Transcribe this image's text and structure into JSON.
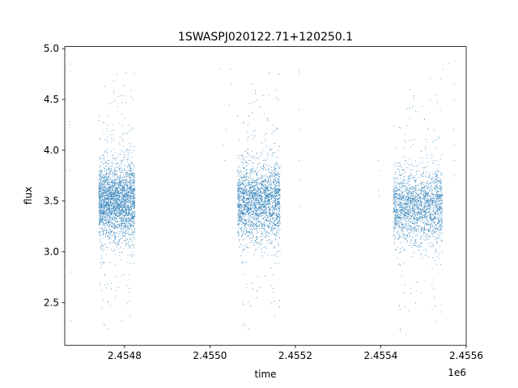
{
  "chart_data": {
    "type": "scatter",
    "title": "1SWASPJ020122.71+120250.1",
    "xlabel": "time",
    "ylabel": "flux",
    "x_offset_label": "1e6",
    "xlim": [
      2454660,
      2455600
    ],
    "ylim": [
      2.08,
      5.02
    ],
    "x_ticks": [
      2454800,
      2455000,
      2455200,
      2455400,
      2455600
    ],
    "x_tick_labels": [
      "2.4548",
      "2.4550",
      "2.4552",
      "2.4554",
      "2.4556"
    ],
    "y_ticks": [
      2.5,
      3.0,
      3.5,
      4.0,
      4.5,
      5.0
    ],
    "y_tick_labels": [
      "2.5",
      "3.0",
      "3.5",
      "4.0",
      "4.5",
      "5.0"
    ],
    "grid": false,
    "point_color": "#1f77b4",
    "observing_seasons": [
      {
        "start": 2454740,
        "end": 2454825,
        "median_flux": 3.5,
        "core_spread": 0.18,
        "points": 3000
      },
      {
        "start": 2455065,
        "end": 2455165,
        "median_flux": 3.5,
        "core_spread": 0.18,
        "points": 3200
      },
      {
        "start": 2455430,
        "end": 2455545,
        "median_flux": 3.45,
        "core_spread": 0.17,
        "points": 2600
      }
    ],
    "sparse_points": [
      {
        "x": 2454672,
        "y": 4.28
      },
      {
        "x": 2454672,
        "y": 4.25
      },
      {
        "x": 2454673,
        "y": 4.85
      },
      {
        "x": 2454673,
        "y": 4.78
      },
      {
        "x": 2454672,
        "y": 3.8
      },
      {
        "x": 2454674,
        "y": 2.8
      },
      {
        "x": 2454675,
        "y": 2.32
      },
      {
        "x": 2455048,
        "y": 4.8
      },
      {
        "x": 2455050,
        "y": 4.65
      },
      {
        "x": 2455045,
        "y": 4.45
      },
      {
        "x": 2455038,
        "y": 4.2
      },
      {
        "x": 2455035,
        "y": 3.9
      },
      {
        "x": 2455025,
        "y": 4.8
      },
      {
        "x": 2455030,
        "y": 4.05
      },
      {
        "x": 2455208,
        "y": 4.78
      },
      {
        "x": 2455209,
        "y": 4.75
      },
      {
        "x": 2455208,
        "y": 4.4
      },
      {
        "x": 2455210,
        "y": 4.2
      },
      {
        "x": 2455208,
        "y": 3.9
      },
      {
        "x": 2455209,
        "y": 3.7
      },
      {
        "x": 2455210,
        "y": 3.45
      },
      {
        "x": 2455395,
        "y": 3.9
      },
      {
        "x": 2455396,
        "y": 3.8
      },
      {
        "x": 2455395,
        "y": 3.6
      },
      {
        "x": 2455396,
        "y": 3.55
      },
      {
        "x": 2455572,
        "y": 4.88
      },
      {
        "x": 2455572,
        "y": 4.65
      },
      {
        "x": 2455573,
        "y": 4.5
      },
      {
        "x": 2455571,
        "y": 4.2
      },
      {
        "x": 2455572,
        "y": 4.05
      },
      {
        "x": 2455573,
        "y": 3.9
      },
      {
        "x": 2455572,
        "y": 3.75
      },
      {
        "x": 2455560,
        "y": 4.86
      },
      {
        "x": 2455545,
        "y": 4.8
      }
    ]
  }
}
